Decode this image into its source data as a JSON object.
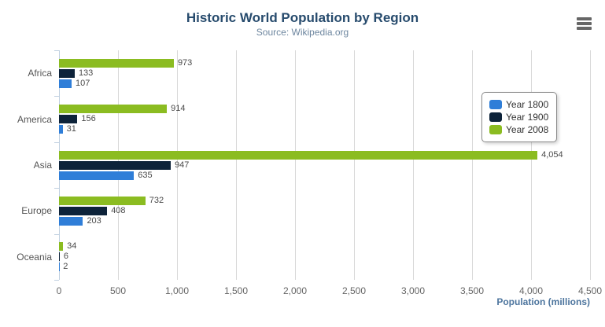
{
  "header": {
    "title": "Historic World Population by Region",
    "subtitle": "Source: Wikipedia.org"
  },
  "icons": {
    "context_menu": "hamburger"
  },
  "chart_data": {
    "type": "bar",
    "orientation": "horizontal",
    "title": "Historic World Population by Region",
    "subtitle": "Source: Wikipedia.org",
    "categories": [
      "Africa",
      "America",
      "Asia",
      "Europe",
      "Oceania"
    ],
    "series": [
      {
        "name": "Year 1800",
        "color": "#2f7ed8",
        "values": [
          107,
          31,
          635,
          203,
          2
        ],
        "labels": [
          "107",
          "31",
          "635",
          "203",
          "2"
        ]
      },
      {
        "name": "Year 1900",
        "color": "#0d233a",
        "values": [
          133,
          156,
          947,
          408,
          6
        ],
        "labels": [
          "133",
          "156",
          "947",
          "408",
          "6"
        ]
      },
      {
        "name": "Year 2008",
        "color": "#8bbc21",
        "values": [
          973,
          914,
          4054,
          732,
          34
        ],
        "labels": [
          "973",
          "914",
          "4,054",
          "732",
          "34"
        ]
      }
    ],
    "xlabel": "Population (millions)",
    "ylabel": "",
    "xlim": [
      0,
      4500
    ],
    "x_ticks": [
      {
        "value": 0,
        "label": "0"
      },
      {
        "value": 500,
        "label": "500"
      },
      {
        "value": 1000,
        "label": "1,000"
      },
      {
        "value": 1500,
        "label": "1,500"
      },
      {
        "value": 2000,
        "label": "2,000"
      },
      {
        "value": 2500,
        "label": "2,500"
      },
      {
        "value": 3000,
        "label": "3,000"
      },
      {
        "value": 3500,
        "label": "3,500"
      },
      {
        "value": 4000,
        "label": "4,000"
      },
      {
        "value": 4500,
        "label": "4,500"
      }
    ],
    "grid": true,
    "legend_position": "right-top",
    "stack_order_top_to_bottom": [
      "Year 2008",
      "Year 1900",
      "Year 1800"
    ]
  }
}
